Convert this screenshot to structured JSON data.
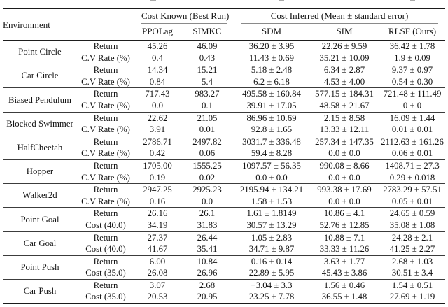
{
  "table": {
    "header": {
      "environment_label": "Environment",
      "groups": [
        {
          "label": "Cost Known (Best Run)",
          "columns": [
            "PPOLag",
            "SIMKC"
          ]
        },
        {
          "label": "Cost Inferred (Mean ± standard error)",
          "columns": [
            "SDM",
            "SIM",
            "RLSF (Ours)"
          ]
        }
      ]
    },
    "rows": [
      {
        "environment": "Point Circle",
        "metrics": [
          {
            "label": "Return",
            "values": [
              "45.26",
              "46.09",
              "36.20 ± 3.95",
              "22.26 ± 9.59",
              "36.42 ± 1.78"
            ]
          },
          {
            "label": "C.V Rate (%)",
            "values": [
              "0.4",
              "0.43",
              "11.43 ± 0.69",
              "35.21 ± 10.09",
              "1.9 ± 0.09"
            ]
          }
        ]
      },
      {
        "environment": "Car Circle",
        "metrics": [
          {
            "label": "Return",
            "values": [
              "14.34",
              "15.21",
              "5.18 ± 2.48",
              "6.34 ± 2.87",
              "9.37 ± 0.97"
            ]
          },
          {
            "label": "C.V Rate (%)",
            "values": [
              "0.84",
              "5.4",
              "6.2 ± 6.18",
              "4.53 ± 4.00",
              "0.54 ± 0.30"
            ]
          }
        ]
      },
      {
        "environment": "Biased Pendulum",
        "metrics": [
          {
            "label": "Return",
            "values": [
              "717.43",
              "983.27",
              "495.58 ± 160.84",
              "577.15 ± 184.31",
              "721.48 ± 111.49"
            ]
          },
          {
            "label": "C.V Rate (%)",
            "values": [
              "0.0",
              "0.1",
              "39.91 ± 17.05",
              "48.58 ± 21.67",
              "0 ± 0"
            ]
          }
        ]
      },
      {
        "environment": "Blocked Swimmer",
        "metrics": [
          {
            "label": "Return",
            "values": [
              "22.62",
              "21.05",
              "86.96 ± 10.69",
              "2.15 ± 8.58",
              "16.09 ± 1.44"
            ]
          },
          {
            "label": "C.V Rate (%)",
            "values": [
              "3.91",
              "0.01",
              "92.8 ± 1.65",
              "13.33 ± 12.11",
              "0.01 ± 0.01"
            ]
          }
        ]
      },
      {
        "environment": "HalfCheetah",
        "metrics": [
          {
            "label": "Return",
            "values": [
              "2786.71",
              "2497.82",
              "3031.7 ± 336.48",
              "257.34 ± 147.35",
              "2112.63 ± 161.26"
            ]
          },
          {
            "label": "C.V Rate (%)",
            "values": [
              "0.42",
              "0.06",
              "59.4 ± 8.28",
              "0.0 ± 0.0",
              "0.06 ± 0.01"
            ]
          }
        ]
      },
      {
        "environment": "Hopper",
        "metrics": [
          {
            "label": "Return",
            "values": [
              "1705.00",
              "1555.25",
              "1097.57 ± 56.35",
              "990.08 ± 8.66",
              "1408.71 ± 27.3"
            ]
          },
          {
            "label": "C.V Rate (%)",
            "values": [
              "0.19",
              "0.02",
              "0.0 ± 0.0",
              "0.0 ± 0.0",
              "0.29 ± 0.018"
            ]
          }
        ]
      },
      {
        "environment": "Walker2d",
        "metrics": [
          {
            "label": "Return",
            "values": [
              "2947.25",
              "2925.23",
              "2195.94 ± 134.21",
              "993.38 ± 17.69",
              "2783.29 ± 57.51"
            ]
          },
          {
            "label": "C.V Rate (%)",
            "values": [
              "0.16",
              "0.0",
              "1.58 ± 1.53",
              "0.0 ± 0.0",
              "0.05 ± 0.01"
            ]
          }
        ]
      },
      {
        "environment": "Point Goal",
        "metrics": [
          {
            "label": "Return",
            "values": [
              "26.16",
              "26.1",
              "1.61 ± 1.8149",
              "10.86 ± 4.1",
              "24.65 ± 0.59"
            ]
          },
          {
            "label": "Cost (40.0)",
            "values": [
              "34.19",
              "31.83",
              "30.57 ± 13.29",
              "52.76 ± 12.85",
              "35.08 ± 1.08"
            ]
          }
        ]
      },
      {
        "environment": "Car Goal",
        "metrics": [
          {
            "label": "Return",
            "values": [
              "27.37",
              "26.44",
              "1.05 ± 2.83",
              "10.88 ± 7.1",
              "24.28 ± 2.1"
            ]
          },
          {
            "label": "Cost (40.0)",
            "values": [
              "41.67",
              "35.41",
              "34.71 ± 9.87",
              "33.33 ± 11.26",
              "41.25 ± 2.27"
            ]
          }
        ]
      },
      {
        "environment": "Point Push",
        "metrics": [
          {
            "label": "Return",
            "values": [
              "6.00",
              "10.84",
              "0.16 ± 0.14",
              "3.63 ± 1.77",
              "2.68 ± 1.03"
            ]
          },
          {
            "label": "Cost (35.0)",
            "values": [
              "26.08",
              "26.96",
              "22.89 ± 5.95",
              "45.43 ± 3.86",
              "30.51 ± 3.4"
            ]
          }
        ]
      },
      {
        "environment": "Car Push",
        "metrics": [
          {
            "label": "Return",
            "values": [
              "3.07",
              "2.68",
              "−3.04 ± 3.3",
              "1.56 ± 0.46",
              "1.54 ± 0.51"
            ]
          },
          {
            "label": "Cost (35.0)",
            "values": [
              "20.53",
              "20.95",
              "23.25 ± 7.78",
              "36.55 ± 1.48",
              "27.69 ± 1.19"
            ]
          }
        ]
      }
    ]
  }
}
